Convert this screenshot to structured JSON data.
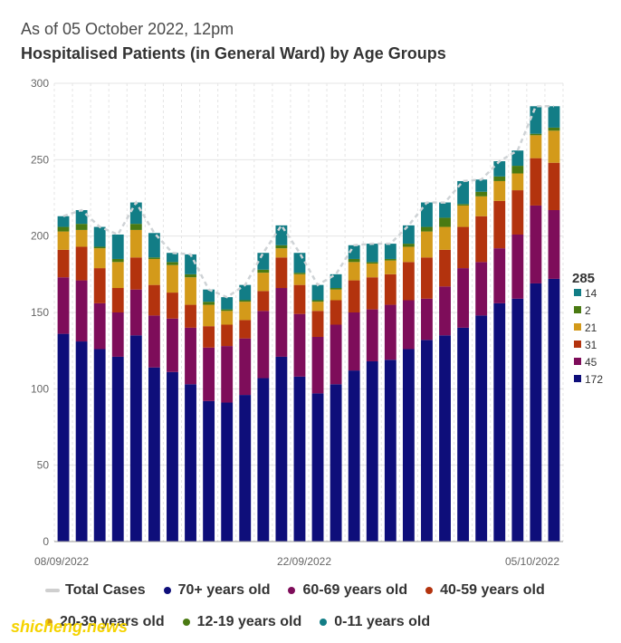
{
  "header": {
    "subtitle": "As of 05 October 2022, 12pm",
    "title": "Hospitalised Patients (in General Ward) by Age Groups"
  },
  "chart_data": {
    "type": "bar",
    "stacked": true,
    "ylim": [
      0,
      300
    ],
    "yticks": [
      0,
      50,
      100,
      150,
      200,
      250,
      300
    ],
    "x_labels": [
      "08/09/2022",
      "22/09/2022",
      "05/10/2022"
    ],
    "categories": [
      "08/09/2022",
      "09/09/2022",
      "10/09/2022",
      "11/09/2022",
      "12/09/2022",
      "13/09/2022",
      "14/09/2022",
      "15/09/2022",
      "16/09/2022",
      "17/09/2022",
      "18/09/2022",
      "19/09/2022",
      "20/09/2022",
      "21/09/2022",
      "22/09/2022",
      "23/09/2022",
      "24/09/2022",
      "25/09/2022",
      "26/09/2022",
      "27/09/2022",
      "28/09/2022",
      "29/09/2022",
      "30/09/2022",
      "01/10/2022",
      "02/10/2022",
      "03/10/2022",
      "04/10/2022",
      "05/10/2022"
    ],
    "series": [
      {
        "name": "70+ years old",
        "color": "#0e0e7a",
        "values": [
          136,
          131,
          126,
          121,
          135,
          114,
          111,
          103,
          92,
          91,
          96,
          107,
          121,
          108,
          97,
          103,
          112,
          118,
          119,
          126,
          132,
          135,
          140,
          148,
          156,
          159,
          169,
          172
        ]
      },
      {
        "name": "60-69 years old",
        "color": "#7e0d5a",
        "values": [
          37,
          40,
          30,
          29,
          30,
          34,
          35,
          37,
          35,
          37,
          37,
          44,
          45,
          41,
          37,
          39,
          38,
          34,
          36,
          32,
          27,
          32,
          39,
          35,
          36,
          42,
          51,
          45
        ]
      },
      {
        "name": "40-59 years old",
        "color": "#b3330e",
        "values": [
          18,
          22,
          23,
          16,
          21,
          20,
          17,
          15,
          14,
          14,
          12,
          13,
          20,
          19,
          17,
          16,
          21,
          21,
          20,
          25,
          27,
          24,
          27,
          30,
          31,
          29,
          31,
          31
        ]
      },
      {
        "name": "20-39 years old",
        "color": "#d39a1a",
        "values": [
          12,
          11,
          13,
          17,
          18,
          17,
          18,
          18,
          14,
          9,
          12,
          12,
          6,
          7,
          6,
          7,
          12,
          9,
          9,
          10,
          17,
          15,
          14,
          13,
          13,
          11,
          15,
          21
        ]
      },
      {
        "name": "12-19 years old",
        "color": "#4a7a12",
        "values": [
          3,
          4,
          1,
          2,
          4,
          1,
          2,
          2,
          2,
          1,
          1,
          2,
          2,
          1,
          1,
          1,
          2,
          1,
          1,
          2,
          3,
          6,
          1,
          3,
          3,
          5,
          1,
          2
        ]
      },
      {
        "name": "0-11 years old",
        "color": "#127d86",
        "values": [
          7,
          9,
          13,
          16,
          14,
          16,
          6,
          13,
          8,
          8,
          10,
          11,
          13,
          13,
          10,
          9,
          9,
          12,
          10,
          12,
          16,
          10,
          15,
          8,
          10,
          10,
          18,
          14
        ]
      }
    ],
    "total_series": {
      "name": "Total Cases",
      "color": "#cfd3d6",
      "values": [
        213,
        217,
        206,
        201,
        222,
        202,
        189,
        188,
        165,
        160,
        168,
        189,
        207,
        189,
        168,
        175,
        194,
        195,
        195,
        207,
        222,
        222,
        236,
        237,
        249,
        256,
        285,
        285
      ]
    },
    "latest": {
      "total": "285",
      "breakdown": [
        {
          "label": "14",
          "color": "#127d86"
        },
        {
          "label": "2",
          "color": "#4a7a12"
        },
        {
          "label": "21",
          "color": "#d39a1a"
        },
        {
          "label": "31",
          "color": "#b3330e"
        },
        {
          "label": "45",
          "color": "#7e0d5a"
        },
        {
          "label": "172",
          "color": "#0e0e7a"
        }
      ]
    }
  },
  "legend": {
    "row1": [
      {
        "label": "Total Cases",
        "kind": "line",
        "color": "#cfcfcf"
      },
      {
        "label": "70+ years old",
        "kind": "dot",
        "color": "#0e0e7a"
      },
      {
        "label": "60-69 years old",
        "kind": "dot",
        "color": "#7e0d5a"
      },
      {
        "label": "40-59 years old",
        "kind": "dot",
        "color": "#b3330e"
      }
    ],
    "row2": [
      {
        "label": "20-39 years old",
        "kind": "dot",
        "color": "#d39a1a"
      },
      {
        "label": "12-19 years old",
        "kind": "dot",
        "color": "#4a7a12"
      },
      {
        "label": "0-11 years old",
        "kind": "dot",
        "color": "#127d86"
      }
    ]
  },
  "watermark": "shicheng.news"
}
